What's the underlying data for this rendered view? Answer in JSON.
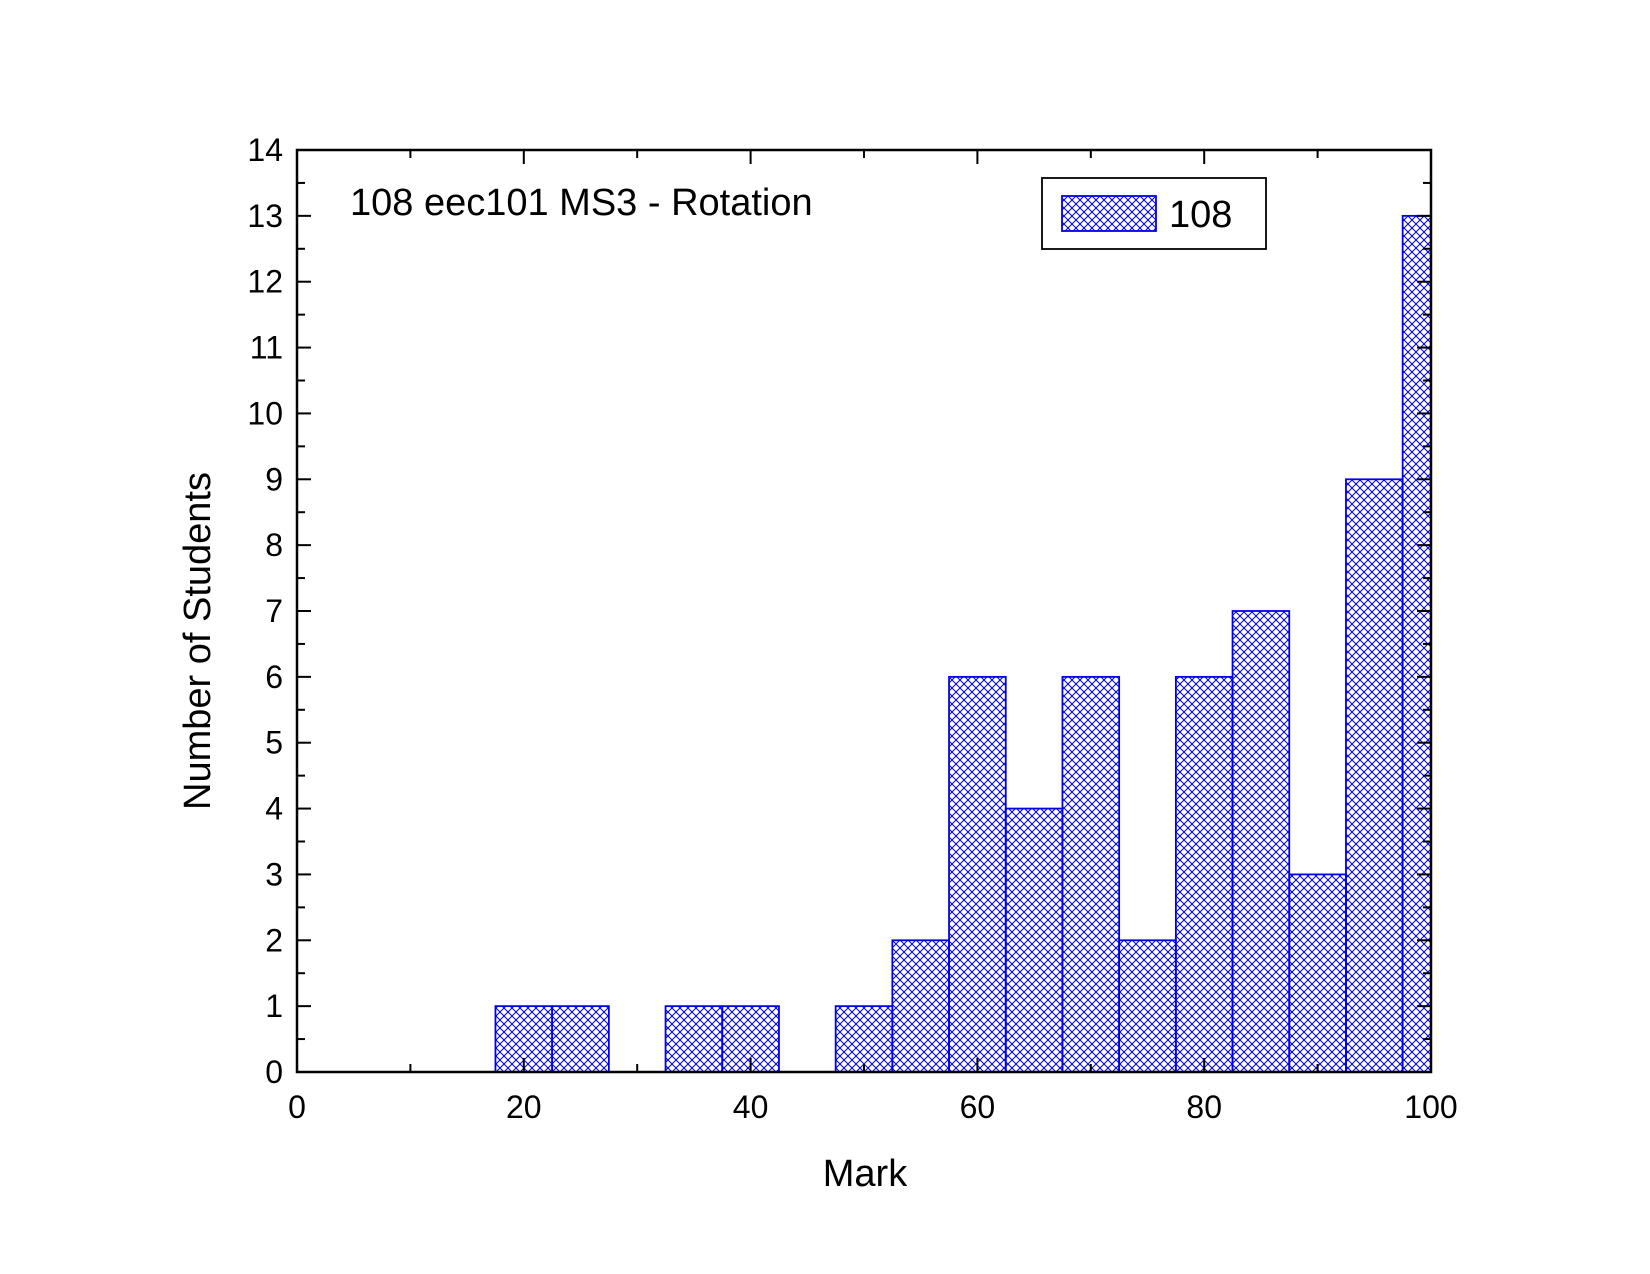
{
  "chart_data": {
    "type": "bar",
    "title": "108 eec101 MS3 - Rotation",
    "xlabel": "Mark",
    "ylabel": "Number of Students",
    "xlim": [
      0,
      100
    ],
    "ylim": [
      0,
      14
    ],
    "bin_width": 5,
    "xticks": [
      "0",
      "20",
      "40",
      "60",
      "80",
      "100"
    ],
    "yticks": [
      "0",
      "1",
      "2",
      "3",
      "4",
      "5",
      "6",
      "7",
      "8",
      "9",
      "10",
      "11",
      "12",
      "13",
      "14"
    ],
    "grid": false,
    "legend": {
      "position": "top-right",
      "entries": [
        "108"
      ]
    },
    "series": [
      {
        "name": "108",
        "color": "#0000ee",
        "pattern": "crosshatch",
        "bins": [
          {
            "x": 20,
            "value": 1
          },
          {
            "x": 25,
            "value": 1
          },
          {
            "x": 35,
            "value": 1
          },
          {
            "x": 40,
            "value": 1
          },
          {
            "x": 50,
            "value": 1
          },
          {
            "x": 55,
            "value": 2
          },
          {
            "x": 60,
            "value": 6
          },
          {
            "x": 65,
            "value": 4
          },
          {
            "x": 70,
            "value": 6
          },
          {
            "x": 75,
            "value": 2
          },
          {
            "x": 80,
            "value": 6
          },
          {
            "x": 85,
            "value": 7
          },
          {
            "x": 90,
            "value": 3
          },
          {
            "x": 95,
            "value": 9
          },
          {
            "x": 100,
            "value": 13
          }
        ]
      }
    ]
  }
}
